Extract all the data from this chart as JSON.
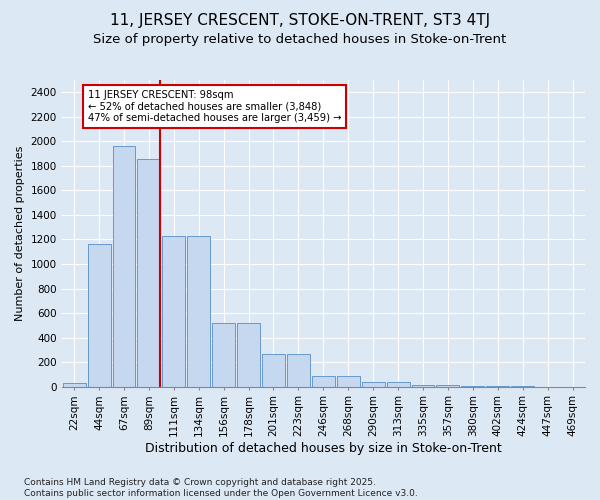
{
  "title": "11, JERSEY CRESCENT, STOKE-ON-TRENT, ST3 4TJ",
  "subtitle": "Size of property relative to detached houses in Stoke-on-Trent",
  "xlabel": "Distribution of detached houses by size in Stoke-on-Trent",
  "ylabel": "Number of detached properties",
  "categories": [
    "22sqm",
    "44sqm",
    "67sqm",
    "89sqm",
    "111sqm",
    "134sqm",
    "156sqm",
    "178sqm",
    "201sqm",
    "223sqm",
    "246sqm",
    "268sqm",
    "290sqm",
    "313sqm",
    "335sqm",
    "357sqm",
    "380sqm",
    "402sqm",
    "424sqm",
    "447sqm",
    "469sqm"
  ],
  "values": [
    30,
    1160,
    1960,
    1860,
    1230,
    1230,
    520,
    520,
    270,
    270,
    90,
    90,
    40,
    40,
    15,
    15,
    8,
    4,
    2,
    1,
    1
  ],
  "bar_color": "#c5d8f0",
  "bar_edge_color": "#6699cc",
  "vline_color": "#cc0000",
  "annotation_text": "11 JERSEY CRESCENT: 98sqm\n← 52% of detached houses are smaller (3,848)\n47% of semi-detached houses are larger (3,459) →",
  "annotation_box_color": "#ffffff",
  "annotation_box_edge": "#cc0000",
  "ylim": [
    0,
    2500
  ],
  "yticks": [
    0,
    200,
    400,
    600,
    800,
    1000,
    1200,
    1400,
    1600,
    1800,
    2000,
    2200,
    2400
  ],
  "background_color": "#dde8f5",
  "grid_color": "#ffffff",
  "footer": "Contains HM Land Registry data © Crown copyright and database right 2025.\nContains public sector information licensed under the Open Government Licence v3.0.",
  "title_fontsize": 11,
  "subtitle_fontsize": 9.5,
  "xlabel_fontsize": 9,
  "ylabel_fontsize": 8,
  "tick_fontsize": 7.5,
  "footer_fontsize": 6.5
}
